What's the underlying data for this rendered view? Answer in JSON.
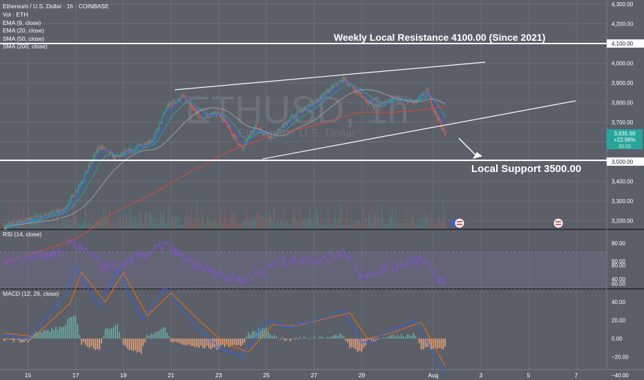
{
  "header": {
    "title": "Ethereum / U.S. Dollar · 1h · COINBASE",
    "lines": [
      "Vol · ETH",
      "EMA (9, close)",
      "EMA (20, close)",
      "SMA (50, close)",
      "SMA (200, close)"
    ]
  },
  "watermark": {
    "symbol": "ETHUSD, 1h",
    "name": "Ethereum / U.S. Dollar"
  },
  "annotations": {
    "resistance_label": "Weekly Local Resistance 4100.00 (Since 2021)",
    "support_label": "Local Support 3500.00"
  },
  "price_badge": {
    "price": "3,635.90",
    "change": "+22.96%",
    "extra": "20:23"
  },
  "rsi_label": "RSI (14, close)",
  "macd_label": "MACD (12, 26, close)",
  "colors": {
    "background": "#5b5f68",
    "grid": "#6a6e77",
    "candle_up": "#26a69a",
    "candle_down": "#ef5350",
    "ema9": "#2962ff",
    "ema20": "#26a69a",
    "sma50": "#9c9fa6",
    "sma200": "#e04a3a",
    "rsi_line": "#7e57c2",
    "macd_line": "#2962ff",
    "signal_line": "#ff6d00",
    "lines_white": "#ffffff"
  },
  "chart_data": [
    {
      "type": "candlestick",
      "title": "Ethereum / U.S. Dollar · 1h · COINBASE",
      "x_tick_labels": [
        "15",
        "17",
        "19",
        "21",
        "23",
        "25",
        "27",
        "29",
        "Aug",
        "3",
        "5",
        "7"
      ],
      "y_tick_labels": [
        "4,300.00",
        "4,200.00",
        "4,100.00",
        "4,000.00",
        "3,900.00",
        "3,800.00",
        "3,700.00",
        "3,600.00",
        "3,500.00",
        "3,400.00",
        "3,300.00",
        "3,200.00"
      ],
      "ylim": [
        3160,
        4300
      ],
      "horizontal_levels": [
        {
          "label": "Weekly Local Resistance 4100.00 (Since 2021)",
          "value": 4100
        },
        {
          "label": "Local Support 3500.00",
          "value": 3500
        }
      ],
      "anchor_points": [
        {
          "x": "Jul 14 00:00",
          "y": 3170
        },
        {
          "x": "Jul 16 12:00",
          "y": 3250
        },
        {
          "x": "Jul 17 06:00",
          "y": 3400
        },
        {
          "x": "Jul 18 00:00",
          "y": 3580
        },
        {
          "x": "Jul 18 16:00",
          "y": 3520
        },
        {
          "x": "Jul 20 06:00",
          "y": 3610
        },
        {
          "x": "Jul 20 20:00",
          "y": 3780
        },
        {
          "x": "Jul 21 12:00",
          "y": 3830
        },
        {
          "x": "Jul 22 06:00",
          "y": 3720
        },
        {
          "x": "Jul 23 00:00",
          "y": 3750
        },
        {
          "x": "Jul 24 00:00",
          "y": 3560
        },
        {
          "x": "Jul 24 12:00",
          "y": 3680
        },
        {
          "x": "Jul 25 06:00",
          "y": 3620
        },
        {
          "x": "Jul 26 00:00",
          "y": 3720
        },
        {
          "x": "Jul 27 00:00",
          "y": 3800
        },
        {
          "x": "Jul 28 06:00",
          "y": 3920
        },
        {
          "x": "Jul 28 18:00",
          "y": 3860
        },
        {
          "x": "Jul 29 12:00",
          "y": 3780
        },
        {
          "x": "Jul 30 12:00",
          "y": 3820
        },
        {
          "x": "Jul 31 06:00",
          "y": 3800
        },
        {
          "x": "Jul 31 18:00",
          "y": 3860
        },
        {
          "x": "Aug 1 00:00",
          "y": 3770
        },
        {
          "x": "Aug 1 12:00",
          "y": 3635.9
        }
      ],
      "series": [
        {
          "name": "EMA (9, close)"
        },
        {
          "name": "EMA (20, close)"
        },
        {
          "name": "SMA (50, close)"
        },
        {
          "name": "SMA (200, close)"
        }
      ]
    },
    {
      "type": "line",
      "title": "RSI (14, close)",
      "y_tick_labels": [
        "80.00",
        "60.00",
        "40.00"
      ],
      "ylim": [
        25,
        90
      ],
      "bands": [
        70,
        30
      ],
      "anchor_points": [
        {
          "x": "Jul 14 00:00",
          "y": 60
        },
        {
          "x": "Jul 16 12:00",
          "y": 70
        },
        {
          "x": "Jul 16 18:00",
          "y": 82
        },
        {
          "x": "Jul 18 12:00",
          "y": 50
        },
        {
          "x": "Jul 20 18:00",
          "y": 78
        },
        {
          "x": "Jul 22 00:00",
          "y": 55
        },
        {
          "x": "Jul 24 00:00",
          "y": 38
        },
        {
          "x": "Jul 25 12:00",
          "y": 60
        },
        {
          "x": "Jul 27 12:00",
          "y": 62
        },
        {
          "x": "Jul 28 06:00",
          "y": 72
        },
        {
          "x": "Jul 29 00:00",
          "y": 42
        },
        {
          "x": "Jul 30 12:00",
          "y": 55
        },
        {
          "x": "Jul 31 12:00",
          "y": 62
        },
        {
          "x": "Aug 1 12:00",
          "y": 33
        }
      ]
    },
    {
      "type": "line",
      "title": "MACD (12, 26, close)",
      "y_tick_labels": [
        "80.00",
        "60.00",
        "40.00",
        "20.00",
        "0.00",
        "−20.00",
        "−40.00"
      ],
      "ylim": [
        -45,
        82
      ],
      "series": [
        {
          "name": "MACD",
          "anchor_points": [
            {
              "x": "Jul 14 00:00",
              "y": 5
            },
            {
              "x": "Jul 15 00:00",
              "y": 0
            },
            {
              "x": "Jul 16 12:00",
              "y": 45
            },
            {
              "x": "Jul 17 00:00",
              "y": 78
            },
            {
              "x": "Jul 18 00:00",
              "y": 35
            },
            {
              "x": "Jul 18 18:00",
              "y": 78
            },
            {
              "x": "Jul 19 18:00",
              "y": 20
            },
            {
              "x": "Jul 20 18:00",
              "y": 55
            },
            {
              "x": "Jul 22 00:00",
              "y": 15
            },
            {
              "x": "Jul 23 00:00",
              "y": -10
            },
            {
              "x": "Jul 24 00:00",
              "y": -20
            },
            {
              "x": "Jul 25 00:00",
              "y": 20
            },
            {
              "x": "Jul 26 00:00",
              "y": 12
            },
            {
              "x": "Jul 28 06:00",
              "y": 30
            },
            {
              "x": "Jul 29 00:00",
              "y": -5
            },
            {
              "x": "Jul 30 00:00",
              "y": 5
            },
            {
              "x": "Jul 31 06:00",
              "y": 20
            },
            {
              "x": "Aug 1 12:00",
              "y": -40
            }
          ]
        },
        {
          "name": "Signal",
          "anchor_points": [
            {
              "x": "Jul 14 00:00",
              "y": 6
            },
            {
              "x": "Jul 15 06:00",
              "y": 2
            },
            {
              "x": "Jul 16 18:00",
              "y": 38
            },
            {
              "x": "Jul 17 06:00",
              "y": 72
            },
            {
              "x": "Jul 18 06:00",
              "y": 40
            },
            {
              "x": "Jul 19 00:00",
              "y": 72
            },
            {
              "x": "Jul 20 00:00",
              "y": 25
            },
            {
              "x": "Jul 21 00:00",
              "y": 50
            },
            {
              "x": "Jul 22 06:00",
              "y": 18
            },
            {
              "x": "Jul 23 06:00",
              "y": -5
            },
            {
              "x": "Jul 24 06:00",
              "y": -15
            },
            {
              "x": "Jul 25 06:00",
              "y": 15
            },
            {
              "x": "Jul 26 06:00",
              "y": 14
            },
            {
              "x": "Jul 28 12:00",
              "y": 28
            },
            {
              "x": "Jul 29 06:00",
              "y": 0
            },
            {
              "x": "Jul 30 06:00",
              "y": 6
            },
            {
              "x": "Jul 31 12:00",
              "y": 18
            },
            {
              "x": "Aug 1 12:00",
              "y": -30
            }
          ]
        }
      ]
    }
  ]
}
